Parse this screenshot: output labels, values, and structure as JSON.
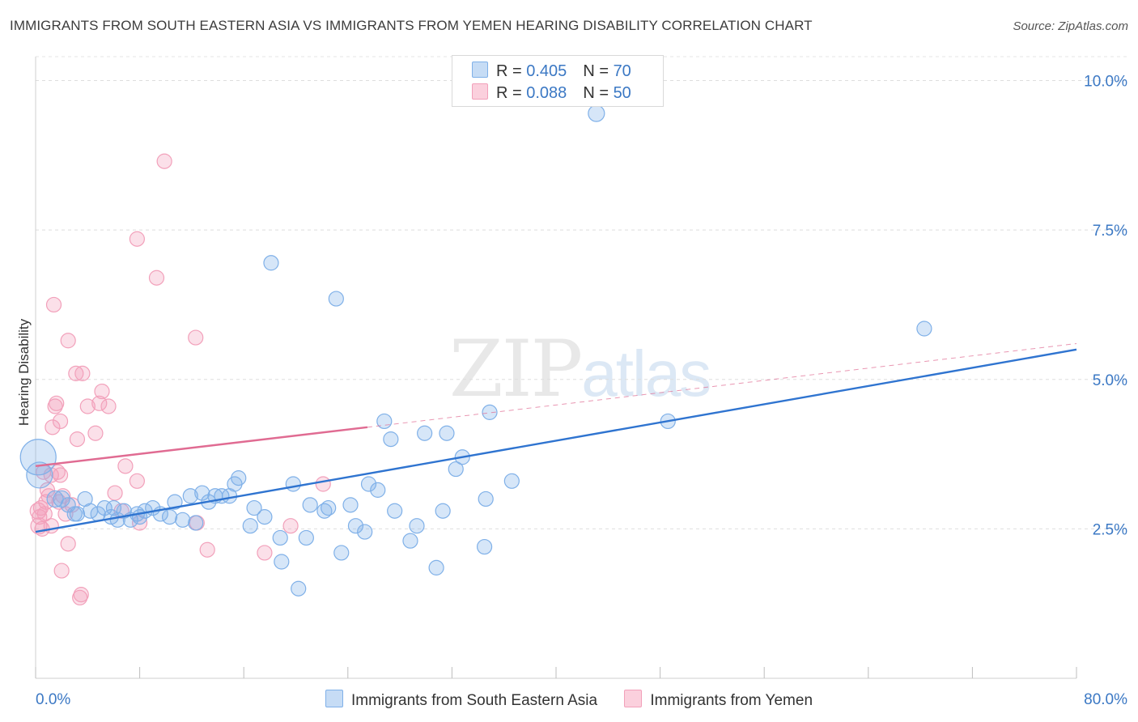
{
  "title": "IMMIGRANTS FROM SOUTH EASTERN ASIA VS IMMIGRANTS FROM YEMEN HEARING DISABILITY CORRELATION CHART",
  "source": "Source: ZipAtlas.com",
  "watermark": {
    "zip": "ZIP",
    "atlas": "atlas"
  },
  "colors": {
    "blue": "#7fb0e8",
    "blue_line": "#2f74d0",
    "pink": "#f2a0ba",
    "pink_line": "#e06b92",
    "axis_text": "#3b78c4"
  },
  "legend": {
    "rows": [
      {
        "r_label": "R = ",
        "r_value": "0.405",
        "n_label": "N = ",
        "n_value": "70"
      },
      {
        "r_label": "R = ",
        "r_value": "0.088",
        "n_label": "N = ",
        "n_value": "50"
      }
    ]
  },
  "bottom_legend": [
    "Immigrants from South Eastern Asia",
    "Immigrants from Yemen"
  ],
  "chart_data": {
    "type": "scatter",
    "title": "IMMIGRANTS FROM SOUTH EASTERN ASIA VS IMMIGRANTS FROM YEMEN HEARING DISABILITY CORRELATION CHART",
    "xlabel": "",
    "ylabel": "Hearing Disability",
    "xlim": [
      0,
      80
    ],
    "ylim": [
      0,
      10.4
    ],
    "x_tick_labels": [
      "0.0%",
      "80.0%"
    ],
    "y_ticks": [
      2.5,
      5.0,
      7.5,
      10.0
    ],
    "y_tick_labels": [
      "2.5%",
      "5.0%",
      "7.5%",
      "10.0%"
    ],
    "series": [
      {
        "name": "Immigrants from South Eastern Asia",
        "color": "#7fb0e8",
        "trend": {
          "x": [
            0,
            80
          ],
          "y": [
            2.45,
            5.5
          ],
          "dashed_extension": false
        },
        "points": [
          [
            0.2,
            3.7,
            22
          ],
          [
            0.3,
            3.4,
            16
          ],
          [
            1.5,
            3.0,
            10
          ],
          [
            2.0,
            3.0,
            10
          ],
          [
            2.5,
            2.9,
            9
          ],
          [
            3.2,
            2.75,
            9
          ],
          [
            3.8,
            3.0,
            9
          ],
          [
            4.2,
            2.8,
            9
          ],
          [
            4.8,
            2.75,
            9
          ],
          [
            5.3,
            2.85,
            9
          ],
          [
            5.8,
            2.7,
            9
          ],
          [
            6.3,
            2.65,
            9
          ],
          [
            6.8,
            2.8,
            9
          ],
          [
            7.3,
            2.65,
            9
          ],
          [
            7.8,
            2.75,
            9
          ],
          [
            8.4,
            2.8,
            9
          ],
          [
            9.0,
            2.85,
            9
          ],
          [
            9.6,
            2.75,
            9
          ],
          [
            10.3,
            2.7,
            9
          ],
          [
            10.7,
            2.95,
            9
          ],
          [
            11.3,
            2.65,
            9
          ],
          [
            11.9,
            3.05,
            9
          ],
          [
            12.3,
            2.6,
            9
          ],
          [
            12.8,
            3.1,
            9
          ],
          [
            13.3,
            2.95,
            9
          ],
          [
            13.8,
            3.05,
            9
          ],
          [
            14.3,
            3.05,
            9
          ],
          [
            14.9,
            3.05,
            9
          ],
          [
            15.3,
            3.25,
            9
          ],
          [
            15.6,
            3.35,
            9
          ],
          [
            16.5,
            2.55,
            9
          ],
          [
            16.8,
            2.85,
            9
          ],
          [
            17.6,
            2.7,
            9
          ],
          [
            18.1,
            6.95,
            9
          ],
          [
            18.8,
            2.35,
            9
          ],
          [
            18.9,
            1.95,
            9
          ],
          [
            19.8,
            3.25,
            9
          ],
          [
            20.2,
            1.5,
            9
          ],
          [
            20.8,
            2.35,
            9
          ],
          [
            21.1,
            2.9,
            9
          ],
          [
            22.2,
            2.8,
            9
          ],
          [
            22.5,
            2.85,
            9
          ],
          [
            23.1,
            6.35,
            9
          ],
          [
            23.5,
            2.1,
            9
          ],
          [
            24.2,
            2.9,
            9
          ],
          [
            24.6,
            2.55,
            9
          ],
          [
            25.3,
            2.45,
            9
          ],
          [
            25.6,
            3.25,
            9
          ],
          [
            26.3,
            3.15,
            9
          ],
          [
            26.8,
            4.3,
            9
          ],
          [
            27.3,
            4.0,
            9
          ],
          [
            27.6,
            2.8,
            9
          ],
          [
            28.8,
            2.3,
            9
          ],
          [
            29.3,
            2.55,
            9
          ],
          [
            29.9,
            4.1,
            9
          ],
          [
            30.8,
            1.85,
            9
          ],
          [
            31.3,
            2.8,
            9
          ],
          [
            31.6,
            4.1,
            9
          ],
          [
            32.3,
            3.5,
            9
          ],
          [
            32.8,
            3.7,
            9
          ],
          [
            34.5,
            2.2,
            9
          ],
          [
            34.6,
            3.0,
            9
          ],
          [
            34.9,
            4.45,
            9
          ],
          [
            36.6,
            3.3,
            9
          ],
          [
            43.1,
            9.45,
            10
          ],
          [
            48.6,
            4.3,
            9
          ],
          [
            68.3,
            5.85,
            9
          ],
          [
            3.0,
            2.75,
            9
          ],
          [
            6.0,
            2.85,
            9
          ],
          [
            8.0,
            2.7,
            9
          ]
        ]
      },
      {
        "name": "Immigrants from Yemen",
        "color": "#f2a0ba",
        "trend": {
          "x": [
            0,
            25.5
          ],
          "y": [
            3.55,
            4.2
          ],
          "dashed_to_x": 80,
          "dashed_to_y": 5.6
        },
        "points": [
          [
            0.2,
            2.8,
            10
          ],
          [
            0.25,
            2.55,
            10
          ],
          [
            0.3,
            2.7,
            9
          ],
          [
            0.4,
            2.85,
            9
          ],
          [
            0.5,
            2.5,
            9
          ],
          [
            0.6,
            3.45,
            9
          ],
          [
            0.8,
            2.95,
            9
          ],
          [
            0.9,
            3.15,
            9
          ],
          [
            1.0,
            3.05,
            9
          ],
          [
            1.2,
            2.55,
            9
          ],
          [
            1.2,
            3.4,
            9
          ],
          [
            1.3,
            4.2,
            9
          ],
          [
            1.4,
            6.25,
            9
          ],
          [
            1.5,
            4.55,
            9
          ],
          [
            1.6,
            4.6,
            9
          ],
          [
            1.7,
            3.45,
            9
          ],
          [
            1.8,
            2.95,
            9
          ],
          [
            1.9,
            3.4,
            9
          ],
          [
            1.9,
            4.3,
            9
          ],
          [
            2.0,
            1.8,
            9
          ],
          [
            2.1,
            3.05,
            9
          ],
          [
            2.3,
            2.75,
            9
          ],
          [
            2.5,
            5.65,
            9
          ],
          [
            2.5,
            2.25,
            9
          ],
          [
            3.1,
            5.1,
            9
          ],
          [
            3.2,
            4.0,
            9
          ],
          [
            3.4,
            1.35,
            9
          ],
          [
            3.5,
            1.4,
            9
          ],
          [
            3.6,
            5.1,
            9
          ],
          [
            4.0,
            4.55,
            9
          ],
          [
            4.6,
            4.1,
            9
          ],
          [
            4.9,
            4.6,
            9
          ],
          [
            5.1,
            4.8,
            9
          ],
          [
            5.6,
            4.55,
            9
          ],
          [
            6.1,
            3.1,
            9
          ],
          [
            6.6,
            2.8,
            9
          ],
          [
            6.9,
            3.55,
            9
          ],
          [
            7.8,
            3.3,
            9
          ],
          [
            7.8,
            7.35,
            9
          ],
          [
            8.0,
            2.6,
            9
          ],
          [
            9.3,
            6.7,
            9
          ],
          [
            9.9,
            8.65,
            9
          ],
          [
            12.3,
            5.7,
            9
          ],
          [
            12.4,
            2.6,
            9
          ],
          [
            13.2,
            2.15,
            9
          ],
          [
            17.6,
            2.1,
            9
          ],
          [
            19.6,
            2.55,
            9
          ],
          [
            22.1,
            3.25,
            9
          ],
          [
            2.8,
            2.9,
            9
          ],
          [
            0.7,
            2.75,
            9
          ]
        ]
      }
    ]
  }
}
